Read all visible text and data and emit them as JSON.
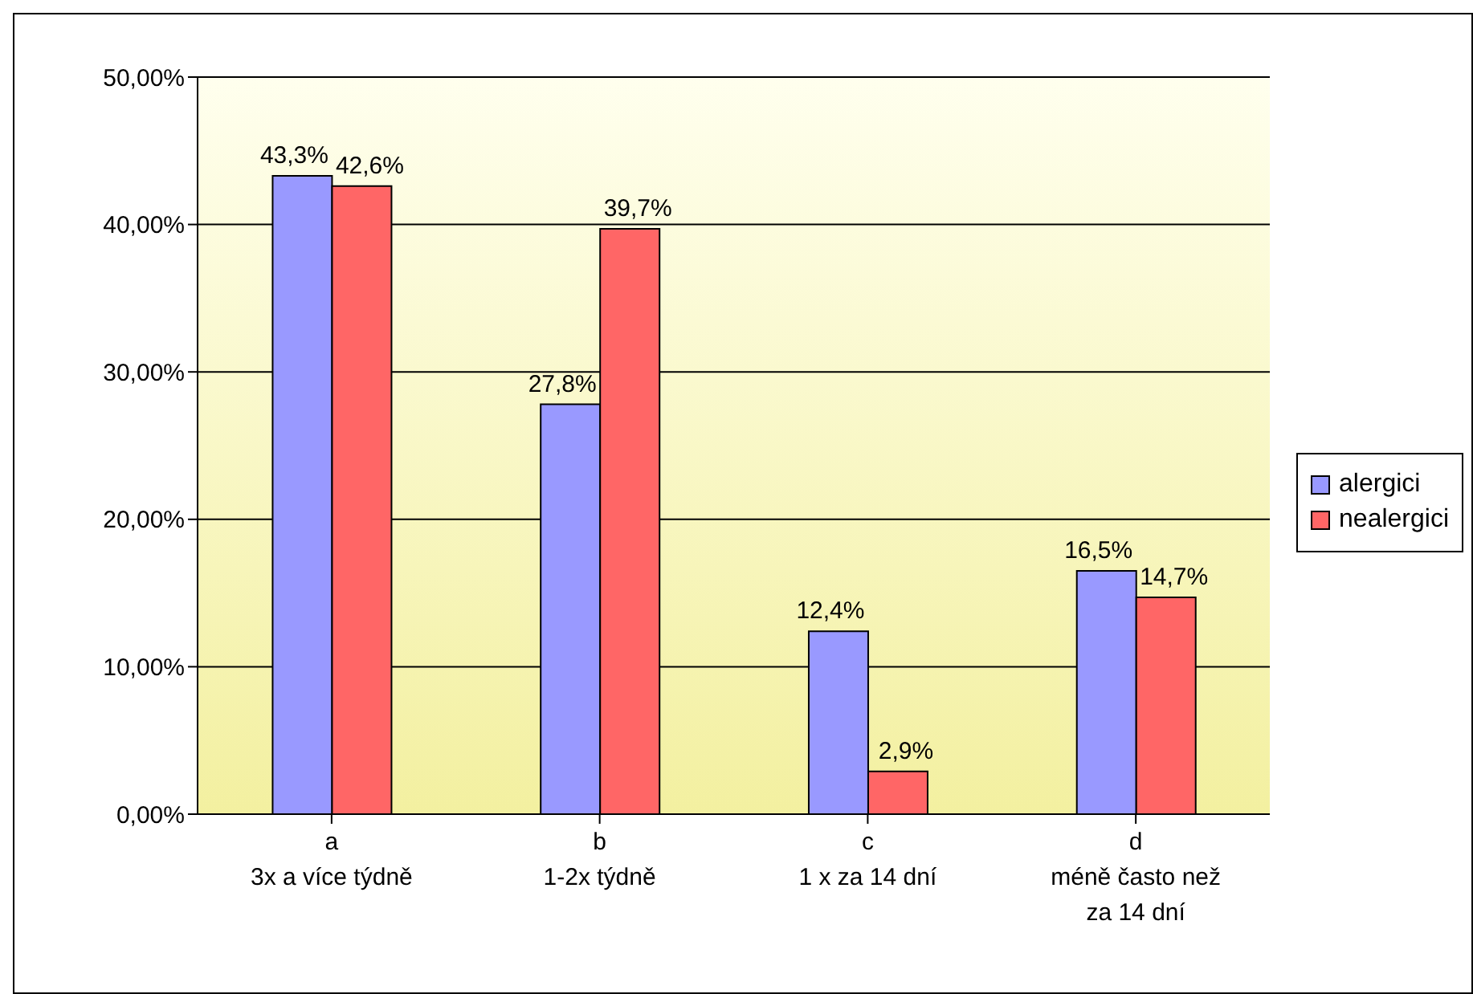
{
  "chart_data": {
    "type": "bar",
    "categories": [
      "a\n3x a více týdně",
      "b\n1-2x týdně",
      "c\n1 x za 14 dní",
      "d\nméně často než\nza 14 dní"
    ],
    "series": [
      {
        "name": "alergici",
        "color": "#9999ff",
        "values": [
          43.3,
          27.8,
          12.4,
          16.5
        ],
        "value_labels": [
          "43,3%",
          "27,8%",
          "12,4%",
          "16,5%"
        ]
      },
      {
        "name": "nealergici",
        "color": "#ff6666",
        "values": [
          42.6,
          39.7,
          2.9,
          14.7
        ],
        "value_labels": [
          "42,6%",
          "39,7%",
          "2,9%",
          "14,7%"
        ]
      }
    ],
    "ylim": [
      0,
      50
    ],
    "yticks": [
      {
        "value": 0,
        "label": "0,00%"
      },
      {
        "value": 10,
        "label": "10,00%"
      },
      {
        "value": 20,
        "label": "20,00%"
      },
      {
        "value": 30,
        "label": "30,00%"
      },
      {
        "value": 40,
        "label": "40,00%"
      },
      {
        "value": 50,
        "label": "50,00%"
      }
    ],
    "grid": "y",
    "legend": "right"
  }
}
